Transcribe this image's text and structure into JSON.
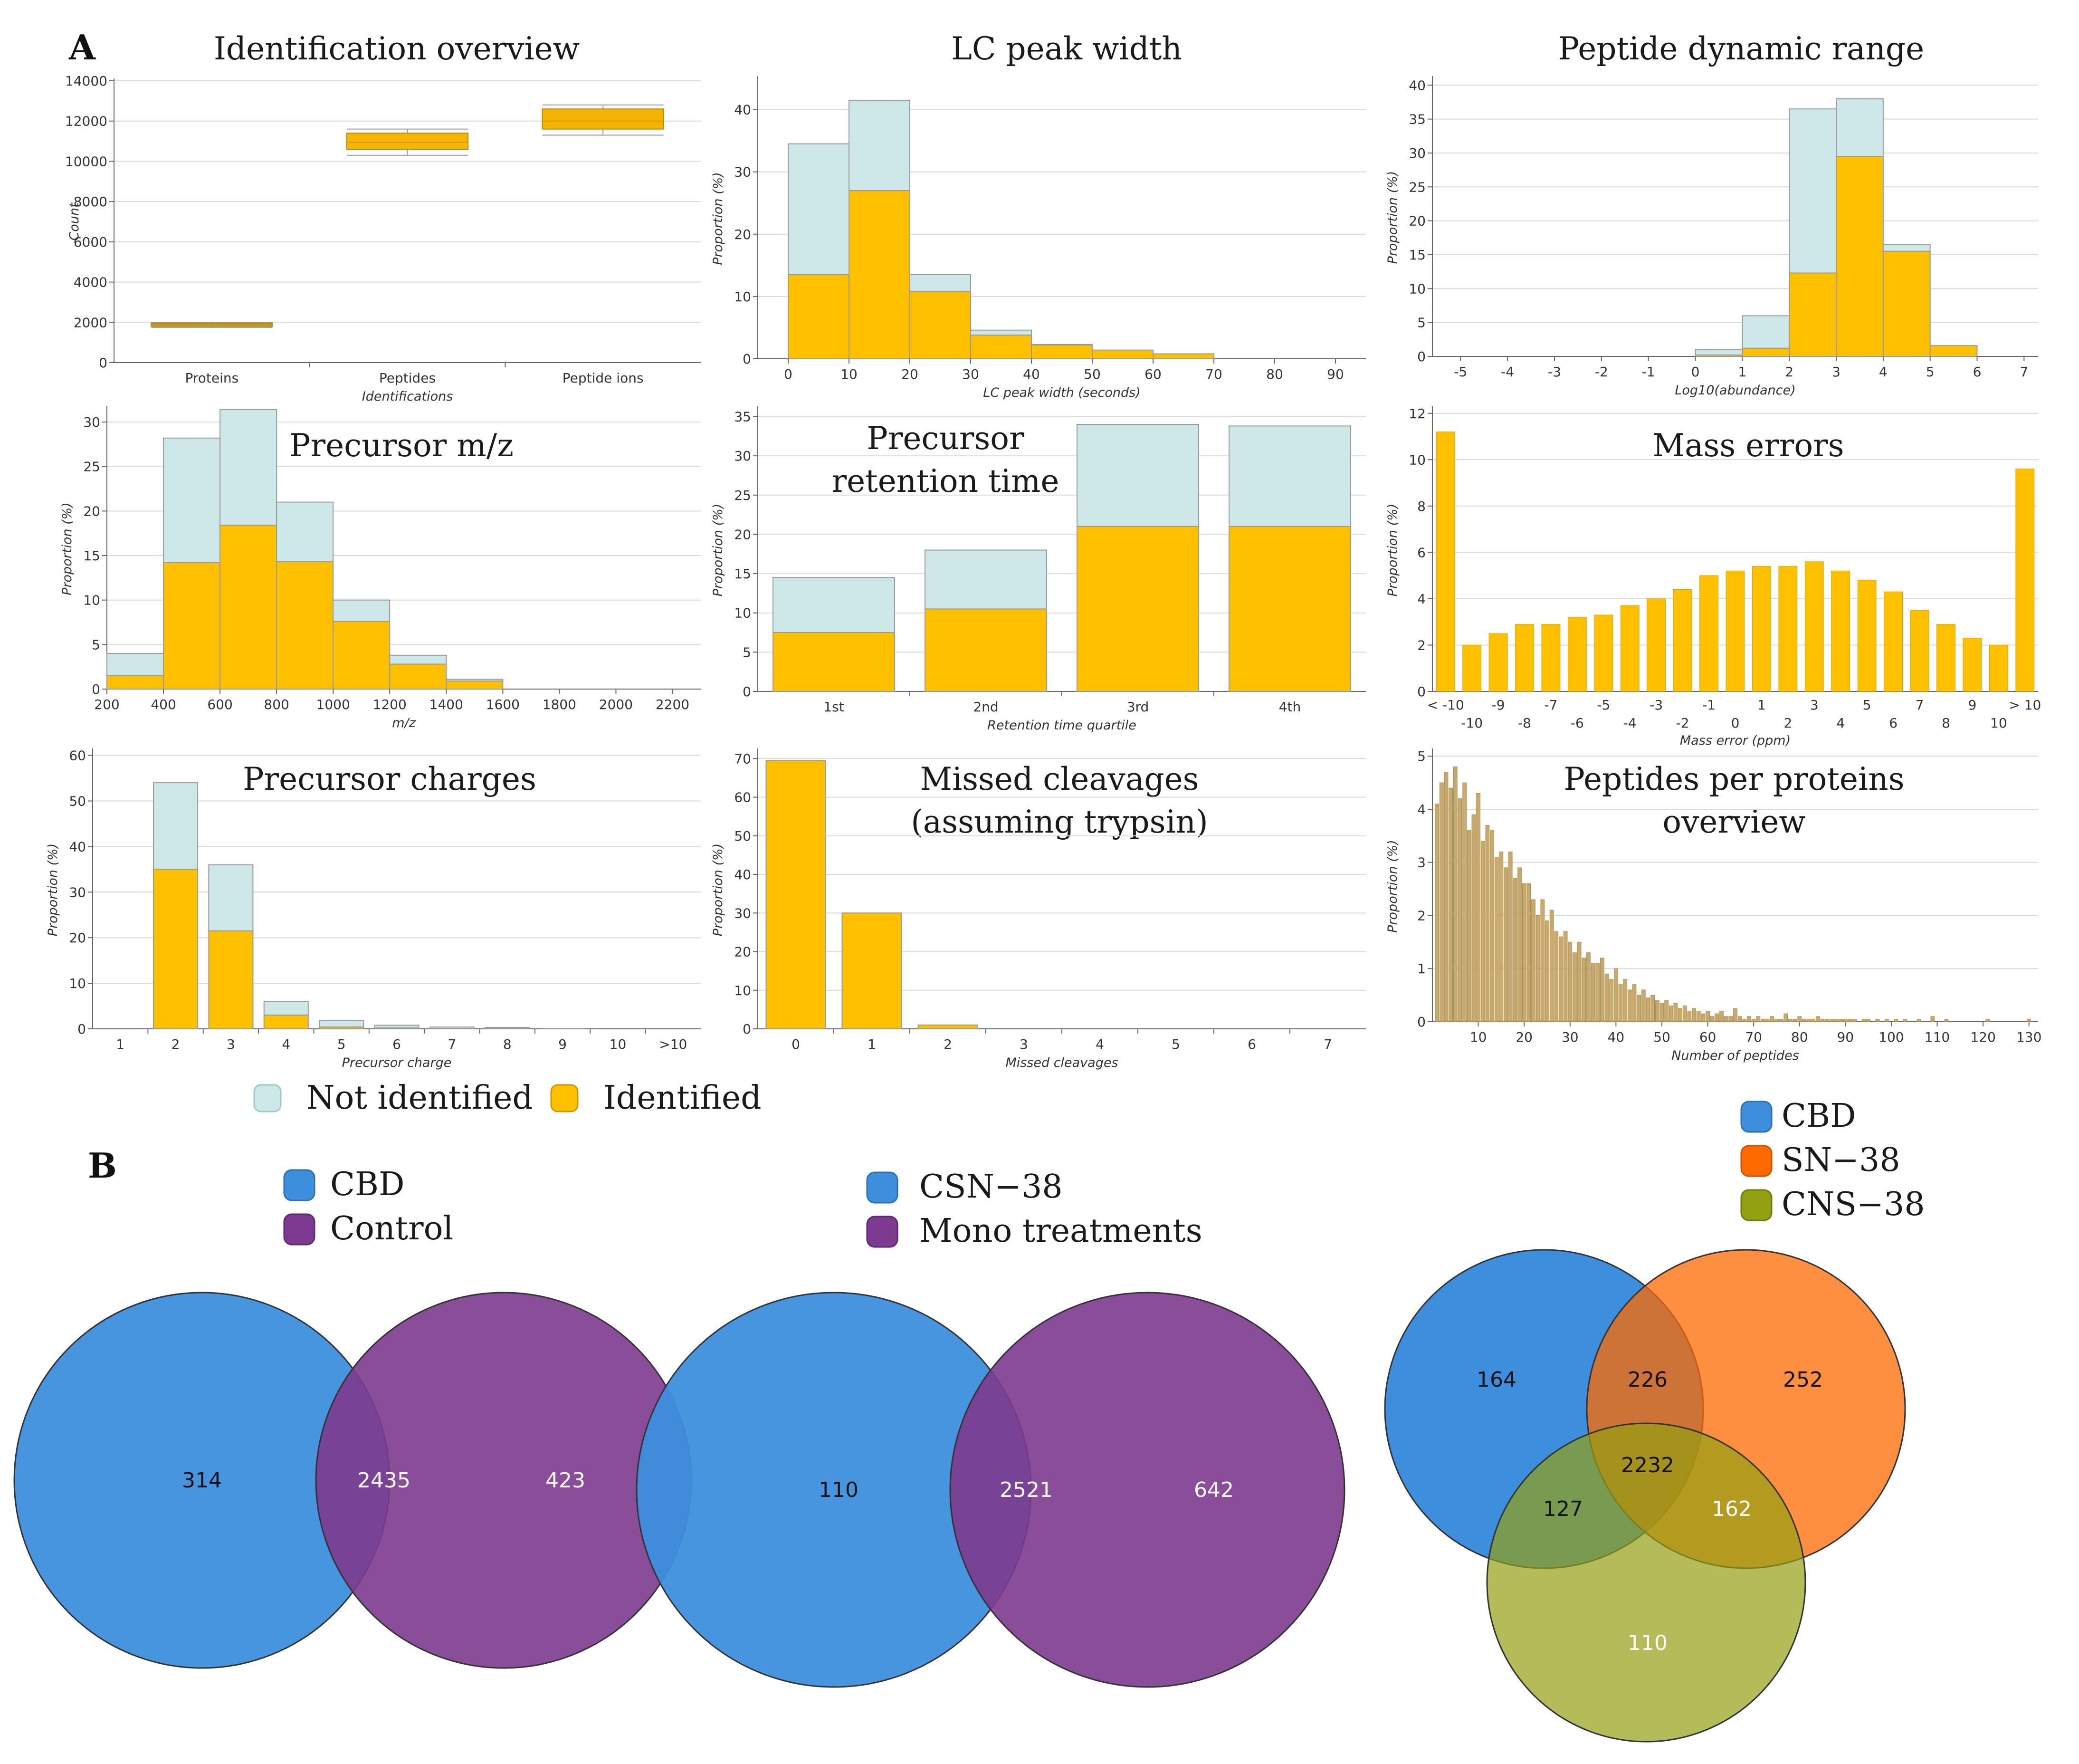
{
  "panel_labels": {
    "a": "A",
    "b": "B"
  },
  "colors": {
    "identified": "#ffc000",
    "not_identified": "#cde8e8",
    "peptides_per_protein": "#c8a96e",
    "identification_box": "#f5b400",
    "protein_line": "#c09a3f",
    "venn_blue": "#3d8fdd",
    "venn_purple": "#7d3a8f",
    "venn_orange": "#ff6a00",
    "venn_olive": "#93a012"
  },
  "legend_a": {
    "not_identified": "Not identified",
    "identified": "Identified"
  },
  "chart_data": [
    {
      "type": "box",
      "title": "Identification overview",
      "xlabel": "Identifications",
      "ylabel": "Count",
      "ylim": [
        0,
        14000
      ],
      "yticks": [
        "0",
        "2000",
        "4000",
        "6000",
        "8000",
        "10000",
        "12000",
        "14000"
      ],
      "categories": [
        "Proteins",
        "Peptides",
        "Peptide ions"
      ],
      "boxes": [
        {
          "category": "Proteins",
          "min": 1750,
          "q1": 1800,
          "median": 1880,
          "q3": 1950,
          "max": 2000
        },
        {
          "category": "Peptides",
          "min": 10300,
          "q1": 10600,
          "median": 10950,
          "q3": 11400,
          "max": 11600
        },
        {
          "category": "Peptide ions",
          "min": 11300,
          "q1": 11600,
          "median": 12000,
          "q3": 12600,
          "max": 12800
        }
      ]
    },
    {
      "type": "bar",
      "stacked": true,
      "title": "LC peak width",
      "xlabel": "LC peak width (seconds)",
      "ylabel": "Proportion (%)",
      "ylim": [
        0,
        45
      ],
      "yticks": [
        "0",
        "10",
        "20",
        "30",
        "40"
      ],
      "xlim": [
        -5,
        95
      ],
      "xticks": [
        "0",
        "10",
        "20",
        "30",
        "40",
        "50",
        "60",
        "70",
        "80",
        "90"
      ],
      "bins": [
        {
          "from": 0,
          "to": 10,
          "identified": 13.5,
          "total": 34.5
        },
        {
          "from": 10,
          "to": 20,
          "identified": 27,
          "total": 41.5
        },
        {
          "from": 20,
          "to": 30,
          "identified": 10.8,
          "total": 13.5
        },
        {
          "from": 30,
          "to": 40,
          "identified": 3.8,
          "total": 4.6
        },
        {
          "from": 40,
          "to": 50,
          "identified": 2.2,
          "total": 2.3
        },
        {
          "from": 50,
          "to": 60,
          "identified": 1.4,
          "total": 1.4
        },
        {
          "from": 60,
          "to": 70,
          "identified": 0.8,
          "total": 0.8
        }
      ]
    },
    {
      "type": "bar",
      "stacked": true,
      "title": "Peptide dynamic range",
      "xlabel": "Log10(abundance)",
      "ylabel": "Proportion (%)",
      "ylim": [
        0,
        41
      ],
      "yticks": [
        "0",
        "5",
        "10",
        "15",
        "20",
        "25",
        "30",
        "35",
        "40"
      ],
      "xlim": [
        -5.6,
        7.3
      ],
      "xticks": [
        "-5",
        "-4",
        "-3",
        "-2",
        "-1",
        "0",
        "1",
        "2",
        "3",
        "4",
        "5",
        "6",
        "7"
      ],
      "bins": [
        {
          "from": 0,
          "to": 1,
          "identified": 0.2,
          "total": 1
        },
        {
          "from": 1,
          "to": 2,
          "identified": 1.2,
          "total": 6
        },
        {
          "from": 2,
          "to": 3,
          "identified": 12.3,
          "total": 36.5
        },
        {
          "from": 3,
          "to": 4,
          "identified": 29.5,
          "total": 38
        },
        {
          "from": 4,
          "to": 5,
          "identified": 15.5,
          "total": 16.5
        },
        {
          "from": 5,
          "to": 6,
          "identified": 1.6,
          "total": 1.6
        }
      ]
    },
    {
      "type": "bar",
      "stacked": true,
      "title": "Precursor m/z",
      "xlabel": "m/z",
      "ylabel": "Proportion (%)",
      "ylim": [
        0,
        31.5
      ],
      "yticks": [
        "0",
        "5",
        "10",
        "15",
        "20",
        "25",
        "30"
      ],
      "xlim": [
        200,
        2300
      ],
      "xticks": [
        "200",
        "400",
        "600",
        "800",
        "1000",
        "1200",
        "1400",
        "1600",
        "1800",
        "2000",
        "2200"
      ],
      "bins": [
        {
          "from": 200,
          "to": 400,
          "identified": 1.5,
          "total": 4
        },
        {
          "from": 400,
          "to": 600,
          "identified": 14.2,
          "total": 28.2
        },
        {
          "from": 600,
          "to": 800,
          "identified": 18.4,
          "total": 31.4
        },
        {
          "from": 800,
          "to": 1000,
          "identified": 14.3,
          "total": 21
        },
        {
          "from": 1000,
          "to": 1200,
          "identified": 7.6,
          "total": 10
        },
        {
          "from": 1200,
          "to": 1400,
          "identified": 2.8,
          "total": 3.8
        },
        {
          "from": 1400,
          "to": 1600,
          "identified": 0.9,
          "total": 1.1
        }
      ]
    },
    {
      "type": "bar",
      "stacked": true,
      "title_lines": [
        "Precursor",
        "retention time"
      ],
      "xlabel": "Retention time quartile",
      "ylabel": "Proportion (%)",
      "ylim": [
        0,
        36
      ],
      "yticks": [
        "0",
        "5",
        "10",
        "15",
        "20",
        "25",
        "30",
        "35"
      ],
      "categories": [
        "1st",
        "2nd",
        "3rd",
        "4th"
      ],
      "identified": [
        7.5,
        10.5,
        21,
        21
      ],
      "total": [
        14.5,
        18,
        34,
        33.8
      ]
    },
    {
      "type": "bar",
      "title": "Mass errors",
      "xlabel": "Mass error (ppm)",
      "ylabel": "Proportion (%)",
      "ylim": [
        0,
        12.2
      ],
      "yticks": [
        "0",
        "2",
        "4",
        "6",
        "8",
        "10",
        "12"
      ],
      "xticks_top": [
        "< -10",
        "-9",
        "-7",
        "-5",
        "-3",
        "-1",
        "1",
        "3",
        "5",
        "7",
        "9",
        "> 10"
      ],
      "xticks_bottom": [
        "-10",
        "-8",
        "-6",
        "-4",
        "-2",
        "0",
        "2",
        "4",
        "6",
        "8",
        "10"
      ],
      "categories": [
        "< -10",
        "-10",
        "-9",
        "-8",
        "-7",
        "-6",
        "-5",
        "-4",
        "-3",
        "-2",
        "-1",
        "0",
        "1",
        "2",
        "3",
        "4",
        "5",
        "6",
        "7",
        "8",
        "9",
        "10",
        "> 10"
      ],
      "values": [
        11.2,
        2.0,
        2.5,
        2.9,
        2.9,
        3.2,
        3.3,
        3.7,
        4.0,
        4.4,
        5.0,
        5.2,
        5.4,
        5.4,
        5.6,
        5.2,
        4.8,
        4.3,
        3.5,
        2.9,
        2.3,
        2.0,
        9.6
      ]
    },
    {
      "type": "bar",
      "stacked": true,
      "title": "Precursor charges",
      "xlabel": "Precursor charge",
      "ylabel": "Proportion (%)",
      "ylim": [
        0,
        61
      ],
      "yticks": [
        "0",
        "10",
        "20",
        "30",
        "40",
        "50",
        "60"
      ],
      "categories": [
        "1",
        "2",
        "3",
        "4",
        "5",
        "6",
        "7",
        "8",
        "9",
        "10",
        ">10"
      ],
      "identified": [
        0,
        35,
        21.5,
        3,
        0.4,
        0.2,
        0.1,
        0.1,
        0,
        0,
        0
      ],
      "total": [
        0,
        54,
        36,
        6,
        1.8,
        0.8,
        0.4,
        0.3,
        0.1,
        0,
        0
      ]
    },
    {
      "type": "bar",
      "title_lines": [
        "Missed cleavages",
        "(assuming trypsin)"
      ],
      "xlabel": "Missed cleavages",
      "ylabel": "Proportion (%)",
      "ylim": [
        0,
        72
      ],
      "yticks": [
        "0",
        "10",
        "20",
        "30",
        "40",
        "50",
        "60",
        "70"
      ],
      "categories": [
        "0",
        "1",
        "2",
        "3",
        "4",
        "5",
        "6",
        "7"
      ],
      "values": [
        69.5,
        30,
        1,
        0,
        0,
        0,
        0,
        0
      ]
    },
    {
      "type": "bar",
      "title_lines": [
        "Peptides per proteins",
        "overview"
      ],
      "xlabel": "Number of peptides",
      "ylabel": "Proportion (%)",
      "ylim": [
        0,
        5.1
      ],
      "yticks": [
        "0",
        "1",
        "2",
        "3",
        "4",
        "5"
      ],
      "xlim": [
        0,
        132
      ],
      "xticks": [
        "10",
        "20",
        "30",
        "40",
        "50",
        "60",
        "70",
        "80",
        "90",
        "100",
        "110",
        "120",
        "130"
      ],
      "x_start": 1,
      "values": [
        4.1,
        4.5,
        4.7,
        4.4,
        4.8,
        4.2,
        4.5,
        3.6,
        3.9,
        4.3,
        3.4,
        3.7,
        3.6,
        3.1,
        3.2,
        2.9,
        3.2,
        2.7,
        2.9,
        2.6,
        2.6,
        2.3,
        2.0,
        2.3,
        1.9,
        2.1,
        1.7,
        1.6,
        1.7,
        1.5,
        1.3,
        1.5,
        1.2,
        1.3,
        1.1,
        1.1,
        1.2,
        0.9,
        0.8,
        1.0,
        0.7,
        0.8,
        0.6,
        0.7,
        0.5,
        0.6,
        0.45,
        0.5,
        0.4,
        0.35,
        0.4,
        0.3,
        0.35,
        0.25,
        0.3,
        0.2,
        0.25,
        0.2,
        0.15,
        0.2,
        0.1,
        0.15,
        0.2,
        0.1,
        0.1,
        0.25,
        0.1,
        0.05,
        0.1,
        0.05,
        0.1,
        0.05,
        0.05,
        0.1,
        0.05,
        0.05,
        0.15,
        0.05,
        0.05,
        0.1,
        0.05,
        0.05,
        0.05,
        0.1,
        0.05,
        0.05,
        0.05,
        0.05,
        0.05,
        0.05,
        0.05,
        0.05,
        0,
        0.05,
        0.05,
        0,
        0.05,
        0,
        0.05,
        0,
        0.05,
        0,
        0.05,
        0,
        0,
        0.05,
        0,
        0,
        0.1,
        0,
        0,
        0.05,
        0,
        0,
        0,
        0,
        0,
        0,
        0,
        0,
        0.05,
        0,
        0,
        0,
        0,
        0,
        0,
        0,
        0,
        0.05
      ]
    },
    {
      "type": "venn",
      "sets": [
        "CBD",
        "Control"
      ],
      "regions": {
        "CBD_only": "314",
        "both": "2435",
        "Control_only": "423"
      }
    },
    {
      "type": "venn",
      "sets": [
        "CSN−38",
        "Mono treatments"
      ],
      "regions": {
        "CSN38_only": "110",
        "both": "2521",
        "Mono_only": "642"
      }
    },
    {
      "type": "venn",
      "sets": [
        "CBD",
        "SN−38",
        "CNS−38"
      ],
      "regions": {
        "CBD_only": "164",
        "SN38_only": "252",
        "CNS38_only": "110",
        "CBD_SN38": "226",
        "CBD_CNS38": "127",
        "SN38_CNS38": "162",
        "all": "2232"
      }
    }
  ]
}
